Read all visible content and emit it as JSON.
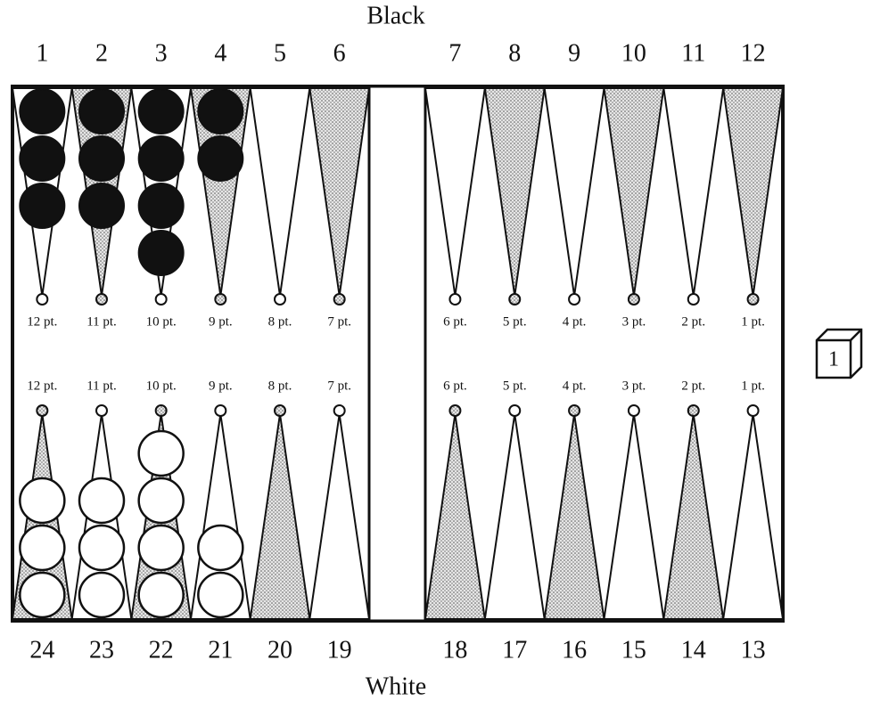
{
  "labels": {
    "top": "Black",
    "bottom": "White"
  },
  "top_points": [
    {
      "number": "1",
      "pt": "12 pt.",
      "checkers": 3
    },
    {
      "number": "2",
      "pt": "11 pt.",
      "checkers": 3
    },
    {
      "number": "3",
      "pt": "10 pt.",
      "checkers": 4
    },
    {
      "number": "4",
      "pt": "9 pt.",
      "checkers": 2
    },
    {
      "number": "5",
      "pt": "8 pt.",
      "checkers": 0
    },
    {
      "number": "6",
      "pt": "7 pt.",
      "checkers": 0
    },
    {
      "number": "7",
      "pt": "6 pt.",
      "checkers": 0
    },
    {
      "number": "8",
      "pt": "5 pt.",
      "checkers": 0
    },
    {
      "number": "9",
      "pt": "4 pt.",
      "checkers": 0
    },
    {
      "number": "10",
      "pt": "3 pt.",
      "checkers": 0
    },
    {
      "number": "11",
      "pt": "2 pt.",
      "checkers": 0
    },
    {
      "number": "12",
      "pt": "1 pt.",
      "checkers": 0
    }
  ],
  "bottom_points": [
    {
      "number": "24",
      "pt": "12 pt.",
      "checkers": 3
    },
    {
      "number": "23",
      "pt": "11 pt.",
      "checkers": 3
    },
    {
      "number": "22",
      "pt": "10 pt.",
      "checkers": 4
    },
    {
      "number": "21",
      "pt": "9 pt.",
      "checkers": 2
    },
    {
      "number": "20",
      "pt": "8 pt.",
      "checkers": 0
    },
    {
      "number": "19",
      "pt": "7 pt.",
      "checkers": 0
    },
    {
      "number": "18",
      "pt": "6 pt.",
      "checkers": 0
    },
    {
      "number": "17",
      "pt": "5 pt.",
      "checkers": 0
    },
    {
      "number": "16",
      "pt": "4 pt.",
      "checkers": 0
    },
    {
      "number": "15",
      "pt": "3 pt.",
      "checkers": 0
    },
    {
      "number": "14",
      "pt": "2 pt.",
      "checkers": 0
    },
    {
      "number": "13",
      "pt": "1 pt.",
      "checkers": 0
    }
  ],
  "cube": "1"
}
